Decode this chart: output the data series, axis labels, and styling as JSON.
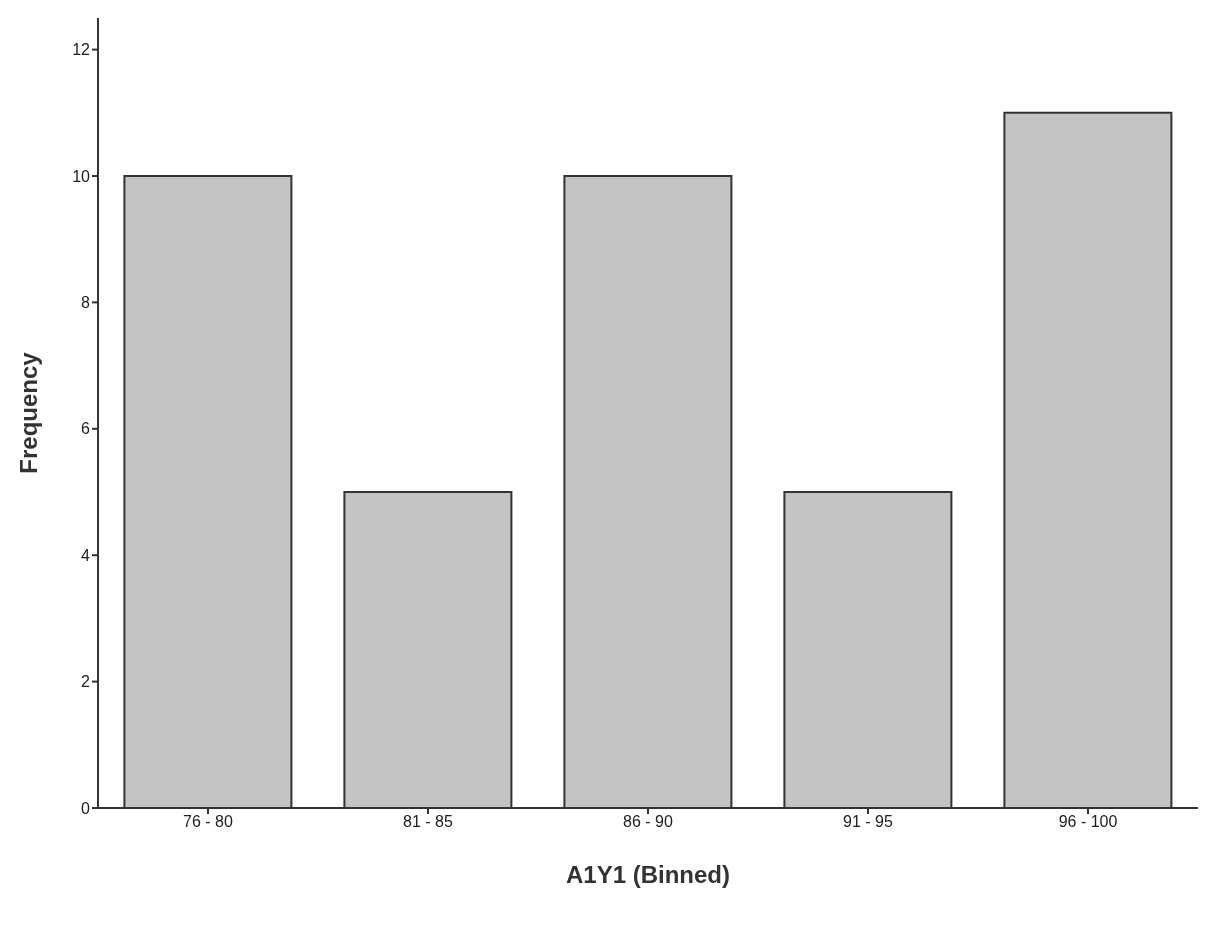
{
  "chart_data": {
    "type": "bar",
    "xlabel": "A1Y1 (Binned)",
    "ylabel": "Frequency",
    "categories": [
      "76 - 80",
      "81 - 85",
      "86 - 90",
      "91 - 95",
      "96 - 100"
    ],
    "values": [
      10,
      5,
      10,
      5,
      11
    ],
    "color": "#c4c4c4",
    "ylim": [
      0,
      12.5
    ],
    "yticks": [
      0,
      2,
      4,
      6,
      8,
      10,
      12
    ],
    "grid": false,
    "legend": false
  }
}
